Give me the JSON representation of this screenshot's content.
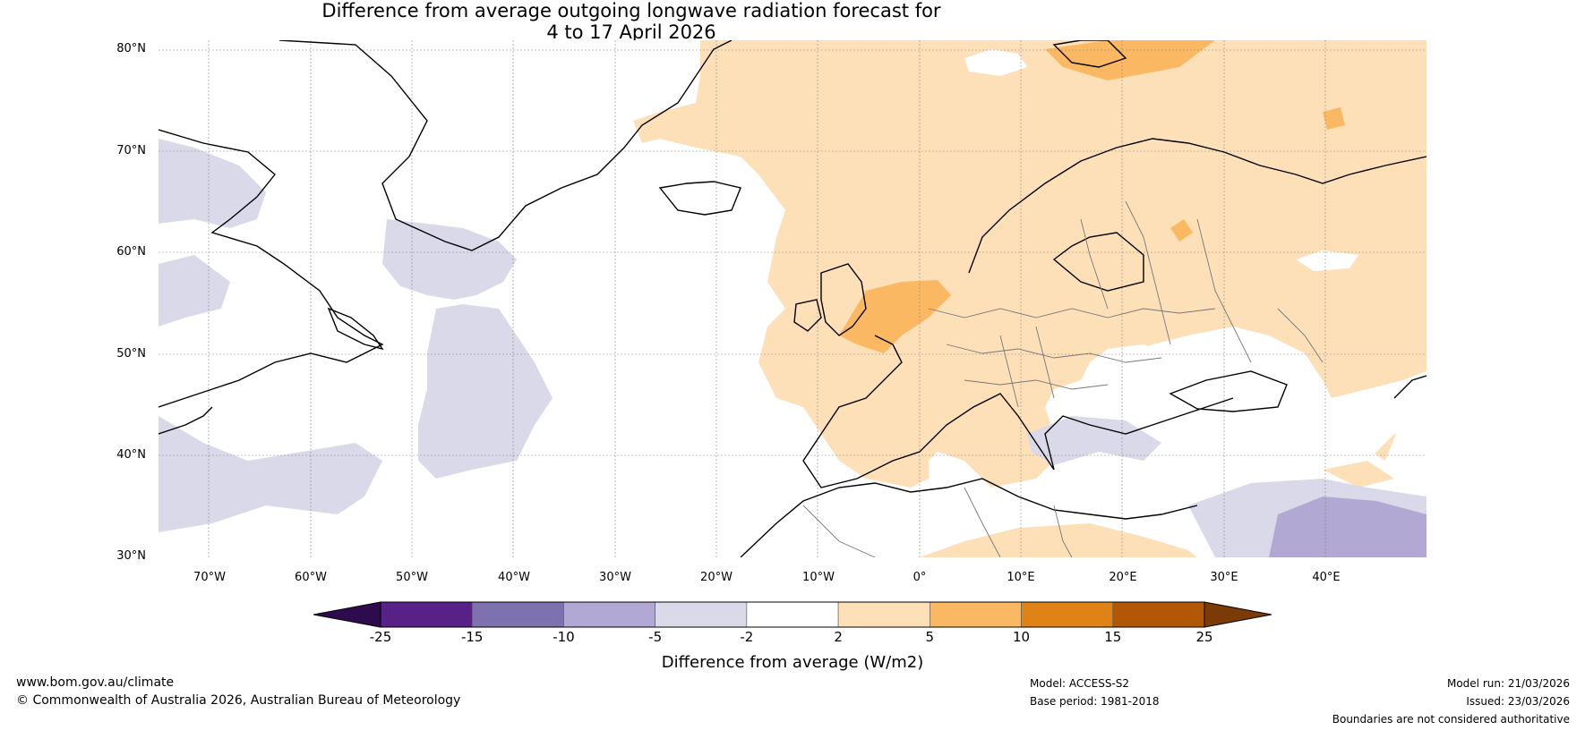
{
  "title": {
    "line1": "Difference from average outgoing longwave radiation forecast for",
    "line2": "4 to 17 April 2026"
  },
  "map": {
    "lat_labels": [
      "80°N",
      "70°N",
      "60°N",
      "50°N",
      "40°N",
      "30°N"
    ],
    "lon_labels": [
      "70°W",
      "60°W",
      "50°W",
      "40°W",
      "30°W",
      "20°W",
      "10°W",
      "0°",
      "10°E",
      "20°E",
      "30°E",
      "40°E"
    ],
    "extent": {
      "lon_min": -75,
      "lon_max": 50,
      "lat_min": 30,
      "lat_max": 81
    },
    "colors": {
      "neg_light": "#d9d9ea",
      "neg_mid": "#b1a9d3",
      "pos_light": "#fde0b8",
      "pos_mid": "#fab863",
      "coast": "#000000",
      "border": "#777777",
      "grid": "#888888"
    }
  },
  "colorbar": {
    "ticks": [
      "-25",
      "-15",
      "-10",
      "-5",
      "-2",
      "2",
      "5",
      "10",
      "15",
      "25"
    ],
    "colors": [
      "#2d0b4d",
      "#572188",
      "#7e72ae",
      "#b1a9d3",
      "#d9d9ea",
      "#ffffff",
      "#fde0b8",
      "#fab863",
      "#e08317",
      "#b25706",
      "#7b3b07"
    ],
    "label": "Difference from average (W/m2)"
  },
  "footer": {
    "website": "www.bom.gov.au/climate",
    "copyright": "© Commonwealth of Australia 2026, Australian Bureau of Meteorology",
    "model": "Model: ACCESS-S2",
    "base_period": "Base period: 1981-2018",
    "model_run": "Model run: 21/03/2026",
    "issued": "Issued: 23/03/2026",
    "disclaimer": "Boundaries are not considered authoritative"
  }
}
